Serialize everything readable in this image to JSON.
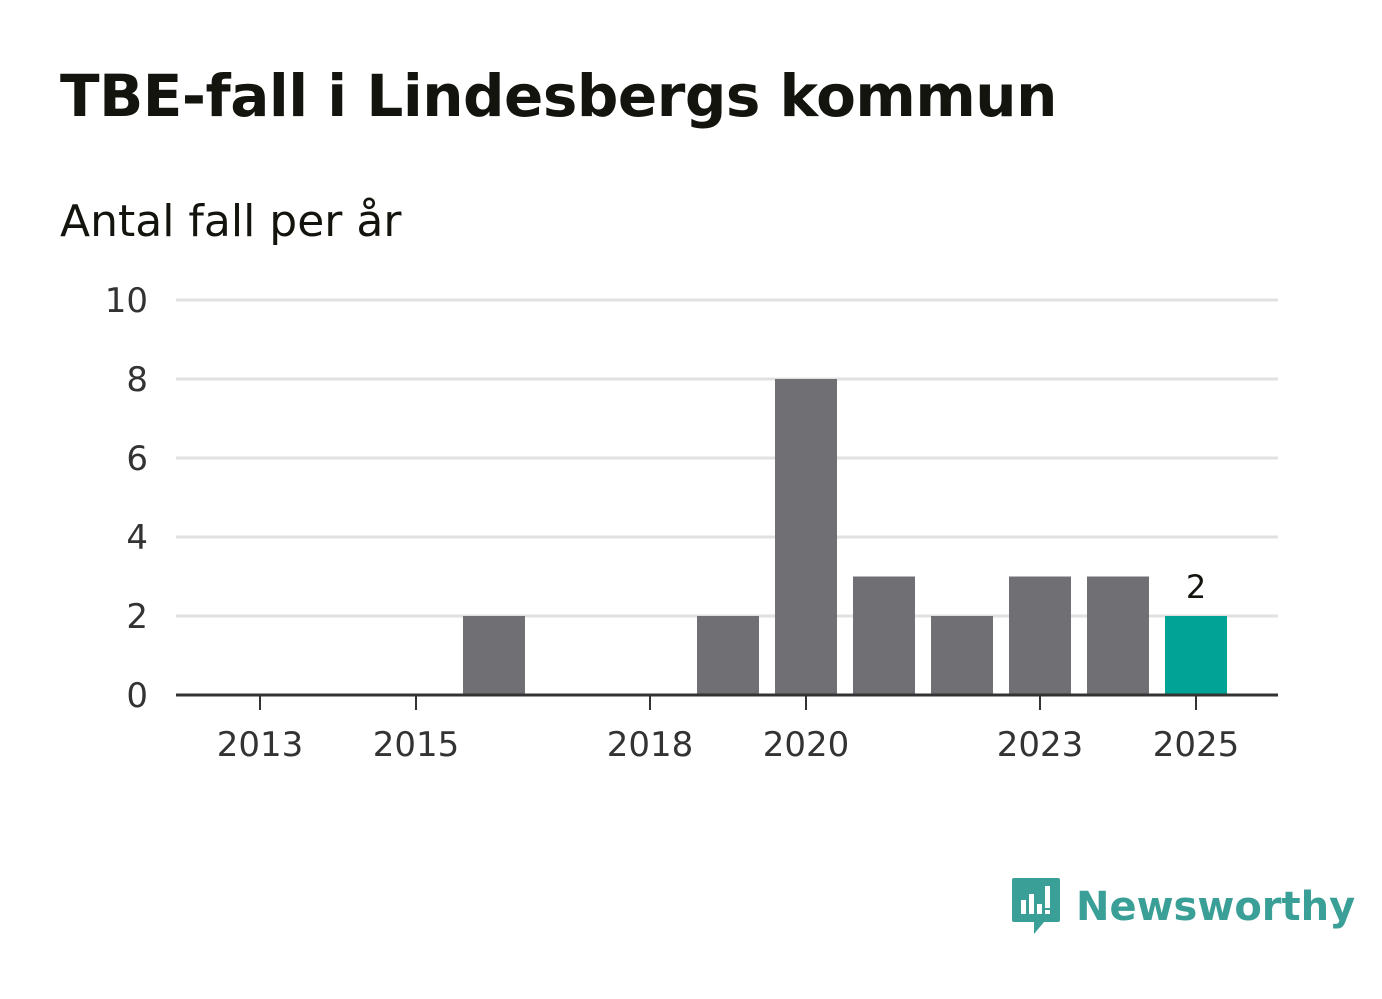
{
  "title": "TBE-fall i Lindesbergs kommun",
  "subtitle": "Antal fall per år",
  "brand": {
    "name": "Newsworthy",
    "icon": "newsworthy-logo-icon"
  },
  "colors": {
    "bar": "#706f74",
    "highlight": "#00a396",
    "grid": "#e1e1e1",
    "axis": "#333333",
    "brand": "#3a9f96"
  },
  "chart_data": {
    "type": "bar",
    "title": "TBE-fall i Lindesbergs kommun",
    "ylabel": "Antal fall per år",
    "xlabel": "",
    "categories": [
      "2013",
      "2014",
      "2015",
      "2016",
      "2017",
      "2018",
      "2019",
      "2020",
      "2021",
      "2022",
      "2023",
      "2024",
      "2025"
    ],
    "values": [
      0,
      0,
      0,
      2,
      0,
      0,
      2,
      8,
      3,
      2,
      3,
      3,
      2
    ],
    "highlight_index": 12,
    "data_label": {
      "index": 12,
      "text": "2"
    },
    "x_tick_labels": [
      "2013",
      "2015",
      "2018",
      "2020",
      "2023",
      "2025"
    ],
    "y_ticks": [
      0,
      2,
      4,
      6,
      8,
      10
    ],
    "ylim": [
      0,
      10
    ],
    "grid": true
  }
}
